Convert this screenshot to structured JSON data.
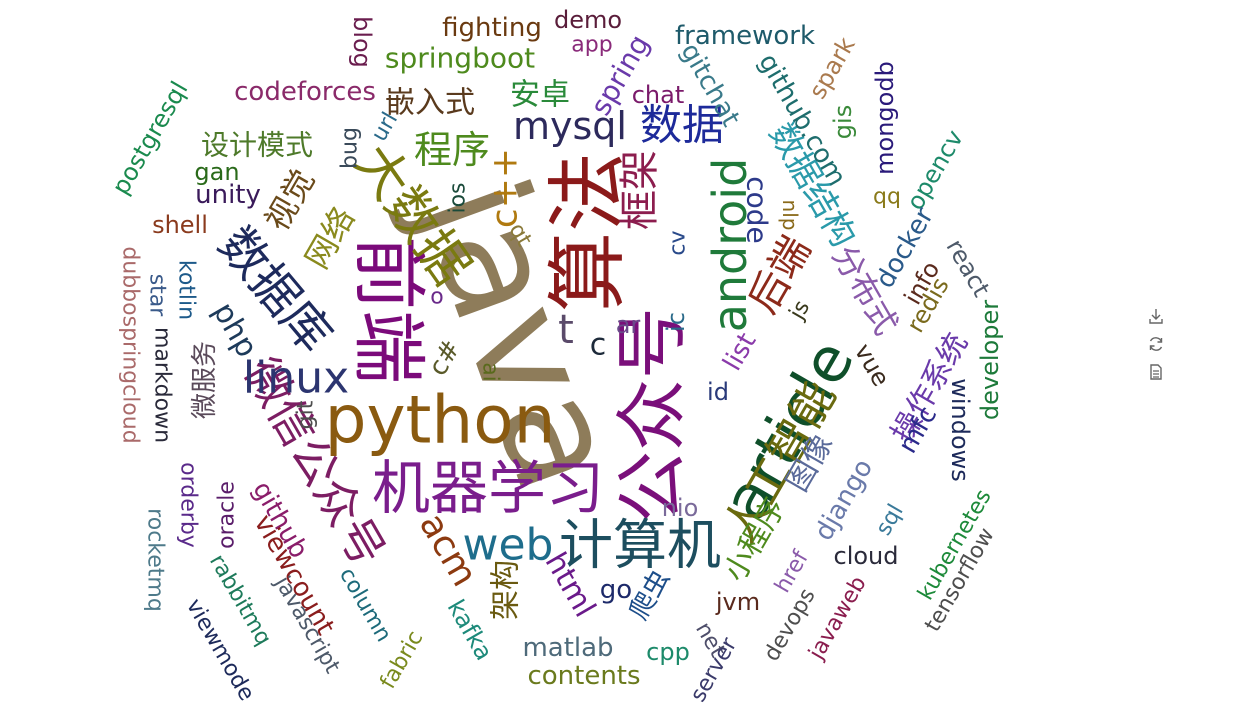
{
  "chart_data": {
    "type": "wordcloud",
    "words": [
      {
        "text": "java",
        "color": "#8e7c5a"
      },
      {
        "text": "python",
        "color": "#8a5a10"
      },
      {
        "text": "算法",
        "color": "#8b1a1a"
      },
      {
        "text": "公众号",
        "color": "#7a0f7a"
      },
      {
        "text": "article",
        "color": "#0f4f2a"
      },
      {
        "text": "前端",
        "color": "#7b0a7a"
      },
      {
        "text": "机器学习",
        "color": "#7a1d8c"
      },
      {
        "text": "数据库",
        "color": "#1d2a5c"
      },
      {
        "text": "大数据",
        "color": "#7a7a10"
      },
      {
        "text": "android",
        "color": "#1f7a3a"
      },
      {
        "text": "计算机",
        "color": "#1d4e5f"
      },
      {
        "text": "web",
        "color": "#1e6d8c"
      },
      {
        "text": "微信公众号",
        "color": "#7c1d63"
      },
      {
        "text": "人工智能",
        "color": "#6a6a0f"
      },
      {
        "text": "linux",
        "color": "#2c3570"
      },
      {
        "text": "mysql",
        "color": "#2d2a5c"
      },
      {
        "text": "数据",
        "color": "#1d2a9a"
      },
      {
        "text": "程序",
        "color": "#4e8a1d"
      },
      {
        "text": "c++",
        "color": "#b07a10"
      },
      {
        "text": "框架",
        "color": "#8c1d4e"
      },
      {
        "text": "后端",
        "color": "#8c2a1a"
      },
      {
        "text": "acm",
        "color": "#8c3a10"
      },
      {
        "text": "springboot",
        "color": "#4e8a1d"
      },
      {
        "text": "嵌入式",
        "color": "#5a3a1d"
      },
      {
        "text": "安卓",
        "color": "#2a8a3a"
      },
      {
        "text": "spring",
        "color": "#6a3aaa"
      },
      {
        "text": "数据结构",
        "color": "#2a9aaa"
      },
      {
        "text": "视觉",
        "color": "#6a4a1a"
      },
      {
        "text": "网络",
        "color": "#8a8a1d"
      },
      {
        "text": "分布式",
        "color": "#8a5aaa"
      },
      {
        "text": "操作系统",
        "color": "#6a3aaa"
      },
      {
        "text": "小程序",
        "color": "#4e8a1d"
      },
      {
        "text": "图像",
        "color": "#5a6a9a"
      },
      {
        "text": "github.com",
        "color": "#1e6d6d"
      },
      {
        "text": "code",
        "color": "#2d3a8a"
      },
      {
        "text": "django",
        "color": "#6a7aaa"
      },
      {
        "text": "mfc",
        "color": "#2a2a8a"
      },
      {
        "text": "html",
        "color": "#6a1a8a"
      },
      {
        "text": "架构",
        "color": "#6a5a10"
      },
      {
        "text": "codeforces",
        "color": "#8a2a6a"
      },
      {
        "text": "设计模式",
        "color": "#4e7a2a"
      },
      {
        "text": "framework",
        "color": "#1e5a6a"
      },
      {
        "text": "fighting",
        "color": "#6a3a10"
      },
      {
        "text": "demo",
        "color": "#5a1d3a"
      },
      {
        "text": "blog",
        "color": "#6a1d4e"
      },
      {
        "text": "app",
        "color": "#8a2a7a"
      },
      {
        "text": "gitchat",
        "color": "#3a7a8a"
      },
      {
        "text": "chat",
        "color": "#7a1a6a"
      },
      {
        "text": "spark",
        "color": "#aa7a4e"
      },
      {
        "text": "mongodb",
        "color": "#2a1a7a"
      },
      {
        "text": "gis",
        "color": "#3a8a3a"
      },
      {
        "text": "opencv",
        "color": "#1d8a6a"
      },
      {
        "text": "qq",
        "color": "#8a7a1a"
      },
      {
        "text": "postgresql",
        "color": "#1a8a4e"
      },
      {
        "text": "url",
        "color": "#2a6a8a"
      },
      {
        "text": "bug",
        "color": "#3a4a5a"
      },
      {
        "text": "gan",
        "color": "#2a6a1a"
      },
      {
        "text": "unity",
        "color": "#3a1a5a"
      },
      {
        "text": "ios",
        "color": "#1a4a3a"
      },
      {
        "text": "shell",
        "color": "#8a3a1d"
      },
      {
        "text": "qt",
        "color": "#8a7a3a"
      },
      {
        "text": "cv",
        "color": "#2a4a8a"
      },
      {
        "text": "nlp",
        "color": "#8a6a1a"
      },
      {
        "text": "docker",
        "color": "#2a5a8a"
      },
      {
        "text": "react",
        "color": "#4e5a6a"
      },
      {
        "text": "info",
        "color": "#5a2a1d"
      },
      {
        "text": "redis",
        "color": "#7a6a1d"
      },
      {
        "text": "developer",
        "color": "#1d7a3a"
      },
      {
        "text": "windows",
        "color": "#1d2a5a"
      },
      {
        "text": "vue",
        "color": "#3a2a1d"
      },
      {
        "text": "js",
        "color": "#3a3a1d"
      },
      {
        "text": "t",
        "color": "#5a4a6a"
      },
      {
        "text": "c",
        "color": "#1d2a3a"
      },
      {
        "text": "ar",
        "color": "#6a4a8a"
      },
      {
        "text": "ic",
        "color": "#2a6a8a"
      },
      {
        "text": "o",
        "color": "#6a2a8a"
      },
      {
        "text": "c#",
        "color": "#5a5a2a"
      },
      {
        "text": "ai",
        "color": "#5a6a1d"
      },
      {
        "text": "list",
        "color": "#8a3aaa"
      },
      {
        "text": "id",
        "color": "#2a3a7a"
      },
      {
        "text": "dubbospringcloud",
        "color": "#aa6a6a"
      },
      {
        "text": "star",
        "color": "#3a5a8a"
      },
      {
        "text": "kotlin",
        "color": "#1d5a8a"
      },
      {
        "text": "markdown",
        "color": "#2a2a3a"
      },
      {
        "text": "微服务",
        "color": "#5a4a5a"
      },
      {
        "text": "php",
        "color": "#1d3a5a"
      },
      {
        "text": "git",
        "color": "#4e4e4e"
      },
      {
        "text": "orderby",
        "color": "#5a2a8a"
      },
      {
        "text": "oracle",
        "color": "#5a1d6a"
      },
      {
        "text": "github",
        "color": "#8a1d6a"
      },
      {
        "text": "viewcount",
        "color": "#8a1d1d"
      },
      {
        "text": "rocketmq",
        "color": "#4e7a8a"
      },
      {
        "text": "rabbitmq",
        "color": "#1d7a5a"
      },
      {
        "text": "javascript",
        "color": "#4e5a6a"
      },
      {
        "text": "viewmode",
        "color": "#1d2a5a"
      },
      {
        "text": "column",
        "color": "#1d6a7a"
      },
      {
        "text": "fabric",
        "color": "#7a8a1d"
      },
      {
        "text": "kafka",
        "color": "#1d8a7a"
      },
      {
        "text": "matlab",
        "color": "#4e6a7a"
      },
      {
        "text": "contents",
        "color": "#6a7a1d"
      },
      {
        "text": "go",
        "color": "#1d2a6a"
      },
      {
        "text": "爬虫",
        "color": "#1d4e8a"
      },
      {
        "text": "cpp",
        "color": "#1d8a6a"
      },
      {
        "text": "jvm",
        "color": "#5a2a1d"
      },
      {
        "text": "net",
        "color": "#4e4e6a"
      },
      {
        "text": "server",
        "color": "#3a3a6a"
      },
      {
        "text": "devops",
        "color": "#4e4e4e"
      },
      {
        "text": "href",
        "color": "#8a5aaa"
      },
      {
        "text": "javaweb",
        "color": "#8a1d4e"
      },
      {
        "text": "cloud",
        "color": "#2a2a3a"
      },
      {
        "text": "kubernetes",
        "color": "#1d8a3a"
      },
      {
        "text": "tensorflow",
        "color": "#4e4e4e"
      },
      {
        "text": "sql",
        "color": "#3a7a9a"
      },
      {
        "text": "nio",
        "color": "#7a6a9a"
      }
    ]
  },
  "toolbox": {
    "icons": [
      "download-icon",
      "refresh-icon",
      "data-view-icon"
    ],
    "icon_color": "#666666"
  }
}
